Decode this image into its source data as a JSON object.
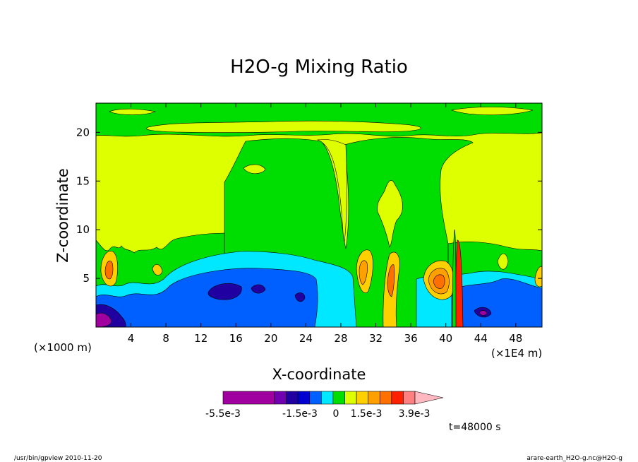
{
  "chart_data": {
    "type": "heatmap",
    "title": "H2O-g Mixing Ratio",
    "xlabel": "X-coordinate",
    "ylabel": "Z-coordinate",
    "x_unit_label": "(×1E4 m)",
    "y_unit_label": "(×1000 m)",
    "xlim": [
      0,
      51
    ],
    "ylim": [
      0,
      23
    ],
    "x_ticks": [
      4,
      8,
      12,
      16,
      20,
      24,
      28,
      32,
      36,
      40,
      44,
      48
    ],
    "y_ticks": [
      5,
      10,
      15,
      20
    ],
    "grid": false,
    "colorbar": {
      "colors": [
        "#a000a0",
        "#7000b0",
        "#2000a0",
        "#0000d0",
        "#0060ff",
        "#00e8ff",
        "#00dd00",
        "#ddff00",
        "#ffd000",
        "#ffa000",
        "#ff7000",
        "#ff2000",
        "#ff8080",
        "#ffb8c0"
      ],
      "labels": [
        "-5.5e-3",
        "-1.5e-3",
        "0",
        "1.5e-3",
        "3.9e-3"
      ]
    },
    "annotations": [
      "t=48000 s"
    ],
    "footer_left": "/usr/bin/gpview   2010-11-20",
    "footer_right": "arare-earth_H2O-g.nc@H2O-g"
  }
}
